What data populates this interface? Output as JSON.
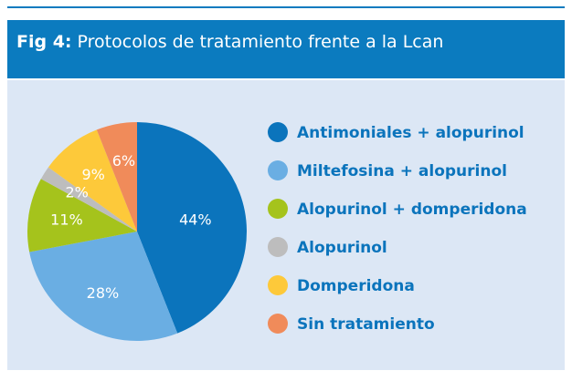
{
  "chart_data": {
    "type": "pie",
    "figure_label": "Fig 4:",
    "title": "Protocolos de tratamiento frente a la Lcan",
    "categories": [
      "Antimoniales + alopurinol",
      "Miltefosina + alopurinol",
      "Alopurinol + domperidona",
      "Alopurinol",
      "Domperidona",
      "Sin tratamiento"
    ],
    "values": [
      44,
      28,
      11,
      2,
      9,
      6
    ],
    "value_labels": [
      "44%",
      "28%",
      "11%",
      "2%",
      "9%",
      "6%"
    ],
    "colors": [
      "#0b74bc",
      "#6aaee3",
      "#a5c31c",
      "#bdbdbd",
      "#fdc93a",
      "#f08b5a"
    ],
    "legend": "right"
  }
}
